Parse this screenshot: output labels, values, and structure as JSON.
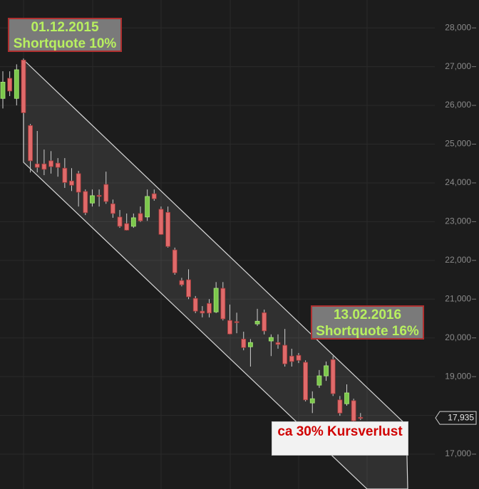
{
  "chart_data": {
    "type": "candlestick",
    "categories": [
      null,
      null,
      null,
      null,
      null,
      null,
      null,
      null,
      null,
      null,
      null,
      null,
      null,
      null,
      null,
      null,
      null,
      null,
      null,
      null,
      null,
      null,
      null,
      null,
      null,
      null,
      null,
      null,
      null,
      null,
      null,
      null,
      null,
      null,
      null,
      null,
      null,
      null,
      null,
      null,
      null,
      null,
      null,
      null,
      null,
      null,
      null,
      null,
      null,
      null,
      null,
      null,
      null
    ],
    "open": [
      26180,
      26700,
      26180,
      27170,
      25480,
      24490,
      24490,
      24570,
      24510,
      24380,
      24050,
      24240,
      23780,
      23480,
      23680,
      23960,
      23460,
      23120,
      22950,
      22880,
      23210,
      23120,
      23720,
      23320,
      23240,
      22270,
      21480,
      21500,
      21020,
      20690,
      20890,
      20670,
      21280,
      20450,
      20420,
      19970,
      19770,
      20360,
      20650,
      19920,
      19880,
      19810,
      19530,
      19550,
      19370,
      18320,
      18780,
      19020,
      19440,
      18400,
      18300,
      18380,
      17950
    ],
    "high": [
      26880,
      26880,
      27060,
      27210,
      25520,
      25340,
      24860,
      24820,
      24640,
      24640,
      24380,
      24310,
      23830,
      23830,
      23830,
      24290,
      23570,
      23300,
      23210,
      23210,
      23390,
      23830,
      23830,
      23390,
      23390,
      22330,
      21550,
      21770,
      21080,
      20820,
      21000,
      21440,
      21440,
      20860,
      20650,
      20160,
      19970,
      20750,
      20730,
      20090,
      20090,
      20230,
      19720,
      19610,
      19420,
      18620,
      19170,
      19390,
      19530,
      18500,
      18800,
      18430,
      18060
    ],
    "low": [
      25920,
      26240,
      26000,
      25780,
      24270,
      24270,
      24200,
      24240,
      24160,
      23870,
      23790,
      23390,
      23170,
      23390,
      23390,
      23460,
      23100,
      22840,
      22770,
      22840,
      22990,
      23020,
      23540,
      22660,
      22330,
      21630,
      21330,
      21000,
      20640,
      20530,
      20530,
      20640,
      20450,
      20090,
      20120,
      19680,
      19260,
      20310,
      20090,
      19530,
      19720,
      19260,
      19260,
      19350,
      18360,
      18060,
      18710,
      18890,
      18500,
      17990,
      18250,
      17770,
      17880
    ],
    "close": [
      26600,
      26370,
      26920,
      25810,
      24570,
      24400,
      24350,
      24420,
      24400,
      24010,
      23940,
      23760,
      23230,
      23670,
      23650,
      23520,
      23210,
      22880,
      22780,
      23100,
      23020,
      23650,
      23590,
      22670,
      22360,
      21680,
      21370,
      21060,
      20690,
      20640,
      20640,
      21280,
      20490,
      20100,
      20400,
      19750,
      19880,
      20430,
      20180,
      20010,
      19830,
      19330,
      19390,
      19420,
      18400,
      18430,
      19020,
      19280,
      18560,
      18060,
      18580,
      17860,
      17935
    ],
    "up_color": "#7cc84c",
    "down_color": "#e06a6a",
    "ylim": [
      16100,
      28720
    ],
    "yticks": [
      {
        "value": 17000,
        "label": "17,000"
      },
      {
        "value": 18000,
        "label": "18,000"
      },
      {
        "value": 19000,
        "label": "19,000"
      },
      {
        "value": 20000,
        "label": "20,000"
      },
      {
        "value": 21000,
        "label": "21,000"
      },
      {
        "value": 22000,
        "label": "22,000"
      },
      {
        "value": 23000,
        "label": "23,000"
      },
      {
        "value": 24000,
        "label": "24,000"
      },
      {
        "value": 25000,
        "label": "25,000"
      },
      {
        "value": 26000,
        "label": "26,000"
      },
      {
        "value": 27000,
        "label": "27,000"
      },
      {
        "value": 28000,
        "label": "28,000"
      }
    ],
    "grid": true,
    "last_price": {
      "value": 17935,
      "label": "17,935"
    },
    "annotations": [
      {
        "lines": [
          "01.12.2015",
          "Shortquote 10%"
        ]
      },
      {
        "lines": [
          "13.02.2016",
          "Shortquote 16%"
        ]
      },
      {
        "lines": [
          "ca 30% Kursverlust"
        ]
      }
    ]
  }
}
